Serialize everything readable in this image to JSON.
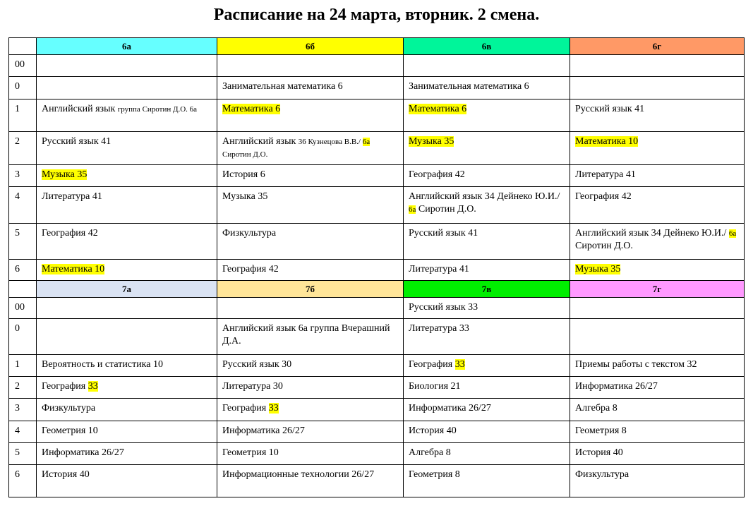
{
  "title": "Расписание на 24 марта, вторник. 2 смена.",
  "sections": [
    {
      "classes": [
        {
          "name": "6а",
          "color": "#66ffff"
        },
        {
          "name": "6б",
          "color": "#ffff00"
        },
        {
          "name": "6в",
          "color": "#00f59a"
        },
        {
          "name": "6г",
          "color": "#ff9966"
        }
      ],
      "rows": [
        {
          "lesson": "00",
          "cells": [
            [],
            [],
            [],
            []
          ]
        },
        {
          "lesson": "0",
          "cells": [
            [],
            [
              {
                "t": "Занимательная математика 6"
              }
            ],
            [
              {
                "t": "Занимательная математика 6"
              }
            ],
            []
          ]
        },
        {
          "lesson": "1",
          "cells": [
            [
              {
                "t": "Английский язык "
              },
              {
                "t": "группа Сиротин Д.О. 6а",
                "sm": true
              }
            ],
            [
              {
                "t": "Математика 6",
                "hl": true
              }
            ],
            [
              {
                "t": "Математика 6",
                "hl": true
              }
            ],
            [
              {
                "t": "Русский язык 41"
              }
            ]
          ]
        },
        {
          "lesson": "2",
          "cells": [
            [
              {
                "t": "Русский язык 41"
              }
            ],
            [
              {
                "t": "Английский язык "
              },
              {
                "t": "36 Кузнецова В.В./ ",
                "sm": true
              },
              {
                "t": "6а",
                "sm": true,
                "hl": true
              },
              {
                "t": " Сиротин Д.О.",
                "sm": true
              }
            ],
            [
              {
                "t": "Музыка 35",
                "hl": true
              }
            ],
            [
              {
                "t": "Математика 10",
                "hl": true
              }
            ]
          ]
        },
        {
          "lesson": "3",
          "cells": [
            [
              {
                "t": "Музыка 35",
                "hl": true
              }
            ],
            [
              {
                "t": "История 6"
              }
            ],
            [
              {
                "t": "География 42"
              }
            ],
            [
              {
                "t": "Литература 41"
              }
            ]
          ]
        },
        {
          "lesson": "4",
          "cells": [
            [
              {
                "t": "Литература 41"
              }
            ],
            [
              {
                "t": "Музыка 35"
              }
            ],
            [
              {
                "t": "Английский язык 34 Дейнеко Ю.И./ "
              },
              {
                "t": "6а",
                "sm": true,
                "hl": true
              },
              {
                "t": " Сиротин Д.О."
              }
            ],
            [
              {
                "t": "География 42"
              }
            ]
          ]
        },
        {
          "lesson": "5",
          "cells": [
            [
              {
                "t": "География 42"
              }
            ],
            [
              {
                "t": "Физкультура"
              }
            ],
            [
              {
                "t": "Русский язык 41"
              }
            ],
            [
              {
                "t": "Английский язык 34 Дейнеко Ю.И./ "
              },
              {
                "t": "6а",
                "sm": true,
                "hl": true
              },
              {
                "t": " Сиротин Д.О."
              }
            ]
          ]
        },
        {
          "lesson": "6",
          "cells": [
            [
              {
                "t": "Математика 10",
                "hl": true
              }
            ],
            [
              {
                "t": "География 42"
              }
            ],
            [
              {
                "t": "Литература 41"
              }
            ],
            [
              {
                "t": "Музыка 35",
                "hl": true
              }
            ]
          ]
        }
      ]
    },
    {
      "classes": [
        {
          "name": "7а",
          "color": "#dae3f3"
        },
        {
          "name": "7б",
          "color": "#ffe599"
        },
        {
          "name": "7в",
          "color": "#00ee00"
        },
        {
          "name": "7г",
          "color": "#ff99ff"
        }
      ],
      "rows": [
        {
          "lesson": "00",
          "cells": [
            [],
            [],
            [
              {
                "t": "Русский язык 33"
              }
            ],
            []
          ]
        },
        {
          "lesson": "0",
          "cells": [
            [],
            [
              {
                "t": "Английский язык  6а группа Вчерашний Д.А."
              }
            ],
            [
              {
                "t": "Литература 33"
              }
            ],
            []
          ]
        },
        {
          "lesson": "1",
          "cells": [
            [
              {
                "t": "Вероятность и статистика 10"
              }
            ],
            [
              {
                "t": "Русский язык 30"
              }
            ],
            [
              {
                "t": "География "
              },
              {
                "t": "33",
                "hl": true
              }
            ],
            [
              {
                "t": "Приемы работы с текстом 32"
              }
            ]
          ]
        },
        {
          "lesson": "2",
          "cells": [
            [
              {
                "t": "География "
              },
              {
                "t": "33",
                "hl": true
              }
            ],
            [
              {
                "t": "Литература 30"
              }
            ],
            [
              {
                "t": "Биология 21"
              }
            ],
            [
              {
                "t": "Информатика 26/27"
              }
            ]
          ]
        },
        {
          "lesson": "3",
          "cells": [
            [
              {
                "t": "Физкультура"
              }
            ],
            [
              {
                "t": "География "
              },
              {
                "t": "33",
                "hl": true
              }
            ],
            [
              {
                "t": "Информатика 26/27"
              }
            ],
            [
              {
                "t": "Алгебра 8"
              }
            ]
          ]
        },
        {
          "lesson": "4",
          "cells": [
            [
              {
                "t": "Геометрия 10"
              }
            ],
            [
              {
                "t": "Информатика 26/27"
              }
            ],
            [
              {
                "t": "История 40"
              }
            ],
            [
              {
                "t": "Геометрия 8"
              }
            ]
          ]
        },
        {
          "lesson": "5",
          "cells": [
            [
              {
                "t": "Информатика 26/27"
              }
            ],
            [
              {
                "t": "Геометрия 10"
              }
            ],
            [
              {
                "t": "Алгебра 8"
              }
            ],
            [
              {
                "t": "История 40"
              }
            ]
          ]
        },
        {
          "lesson": "6",
          "cells": [
            [
              {
                "t": "История 40"
              }
            ],
            [
              {
                "t": "Информационные технологии 26/27"
              }
            ],
            [
              {
                "t": "Геометрия 8"
              }
            ],
            [
              {
                "t": "Физкультура"
              }
            ]
          ]
        }
      ]
    }
  ]
}
